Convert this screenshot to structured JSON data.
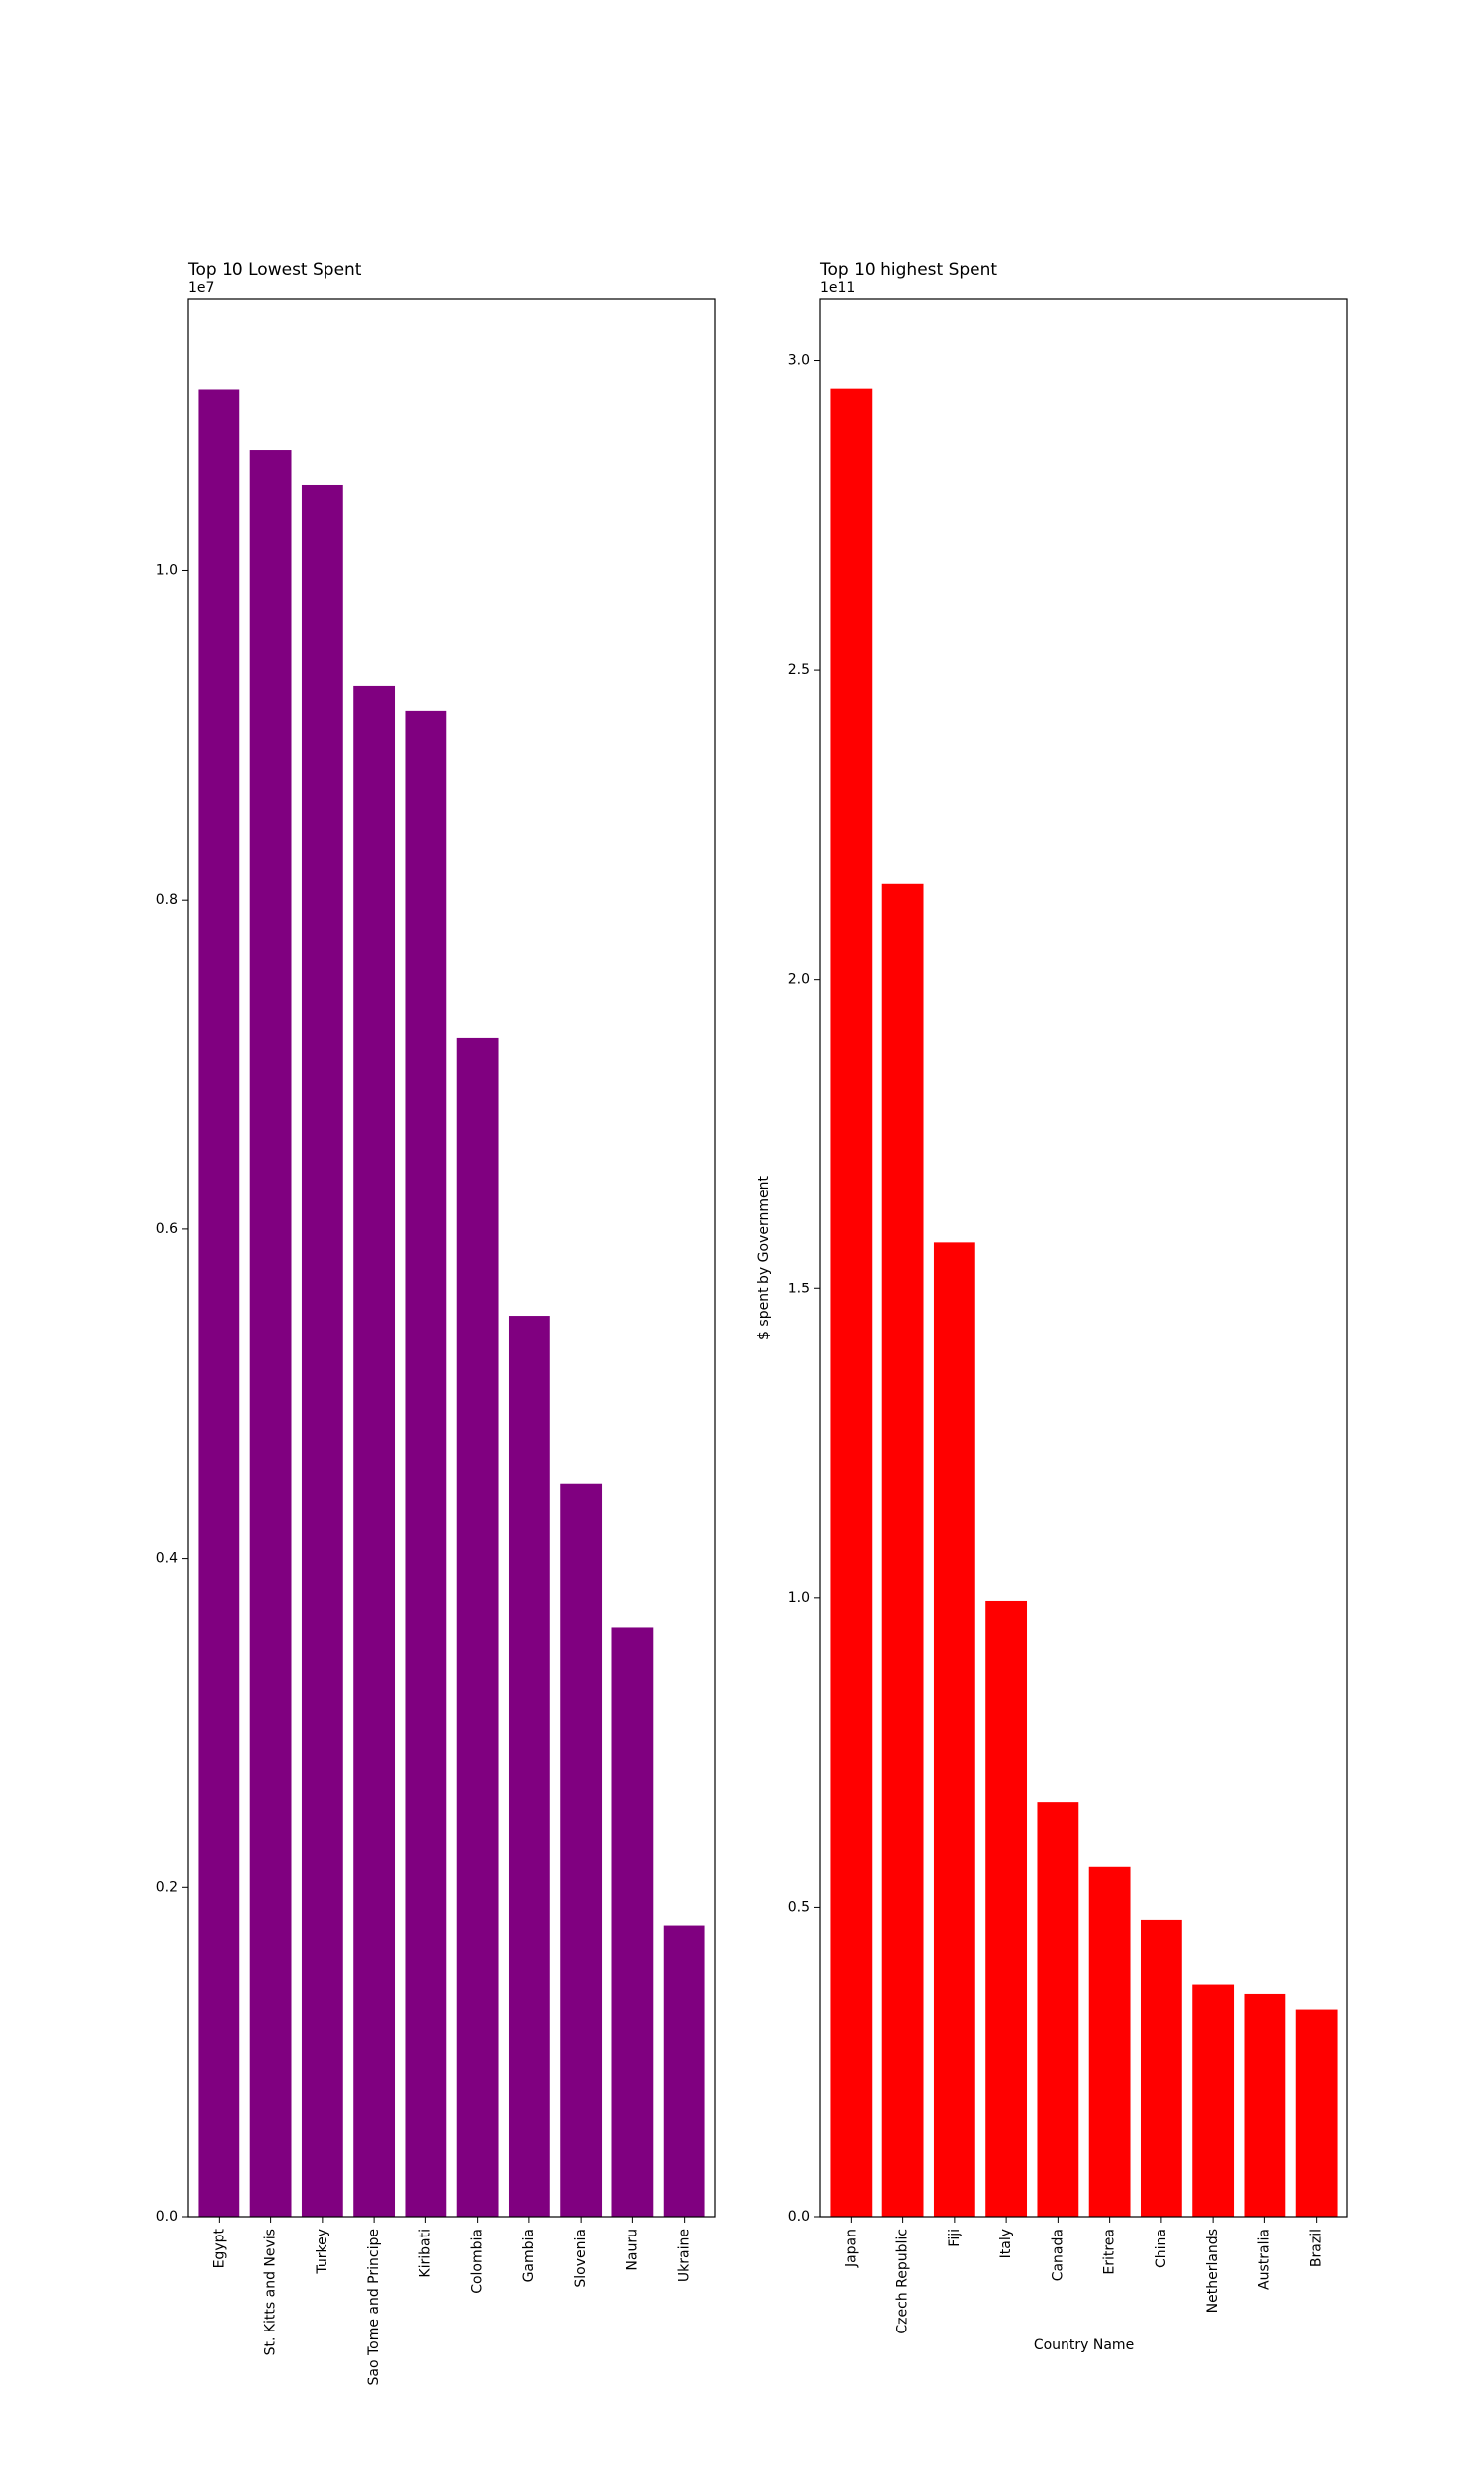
{
  "chart_data": [
    {
      "type": "bar",
      "title": "Top 10 Lowest Spent",
      "xlabel": "",
      "ylabel": "",
      "offset_text": "1e7",
      "color": "#800080",
      "categories": [
        "Egypt",
        "St. Kitts and Nevis",
        "Turkey",
        "Sao Tome and Principe",
        "Kiribati",
        "Colombia",
        "Gambia",
        "Slovenia",
        "Nauru",
        "Ukraine"
      ],
      "values": [
        11100000,
        10730000,
        10520000,
        9300000,
        9150000,
        7160000,
        5470000,
        4450000,
        3580000,
        1770000
      ],
      "ylim": [
        0,
        11650000
      ],
      "yticks": [
        0,
        2000000,
        4000000,
        6000000,
        8000000,
        10000000
      ],
      "ytick_labels": [
        "0.0",
        "0.2",
        "0.4",
        "0.6",
        "0.8",
        "1.0"
      ],
      "grid": false
    },
    {
      "type": "bar",
      "title": "Top 10 highest Spent",
      "xlabel": "Country Name",
      "ylabel": "$ spent by Government",
      "offset_text": "1e11",
      "color": "#ff0000",
      "categories": [
        "Japan",
        "Czech Republic",
        "Fiji",
        "Italy",
        "Canada",
        "Eritrea",
        "China",
        "Netherlands",
        "Australia",
        "Brazil"
      ],
      "values": [
        295500000000,
        215500000000,
        157500000000,
        99500000000,
        67000000000,
        56500000000,
        48000000000,
        37500000000,
        36000000000,
        33500000000
      ],
      "ylim": [
        0,
        310000000000
      ],
      "yticks": [
        0,
        50000000000,
        100000000000,
        150000000000,
        200000000000,
        250000000000,
        300000000000
      ],
      "ytick_labels": [
        "0.0",
        "0.5",
        "1.0",
        "1.5",
        "2.0",
        "2.5",
        "3.0"
      ],
      "grid": false
    }
  ]
}
